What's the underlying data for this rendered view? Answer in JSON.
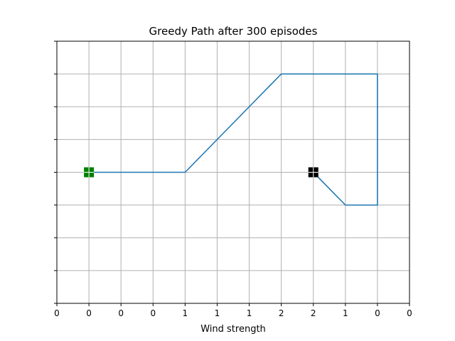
{
  "chart_data": {
    "type": "line",
    "title": "Greedy Path after 300 episodes",
    "xlabel": "Wind strength",
    "ylabel": "",
    "xlim": [
      0,
      11
    ],
    "ylim": [
      0,
      8
    ],
    "x_tick_positions": [
      0,
      1,
      2,
      3,
      4,
      5,
      6,
      7,
      8,
      9,
      10,
      11
    ],
    "x_tick_labels": [
      "0",
      "0",
      "0",
      "0",
      "1",
      "1",
      "1",
      "2",
      "2",
      "1",
      "0",
      "0"
    ],
    "y_tick_positions": [
      0,
      1,
      2,
      3,
      4,
      5,
      6,
      7,
      8
    ],
    "y_tick_labels": [
      "",
      "",
      "",
      "",
      "",
      "",
      "",
      "",
      ""
    ],
    "grid": true,
    "series": [
      {
        "x": [
          1,
          2,
          3,
          4,
          5,
          6,
          7,
          8,
          9,
          10,
          10,
          9,
          8
        ],
        "y": [
          4,
          4,
          4,
          4,
          5,
          6,
          7,
          7,
          7,
          7,
          3,
          3,
          4
        ],
        "color": "#1f77b4"
      }
    ],
    "markers": [
      {
        "role": "start",
        "x": 1,
        "y": 4,
        "shape": "square",
        "color": "#008000"
      },
      {
        "role": "goal",
        "x": 8,
        "y": 4,
        "shape": "square",
        "color": "#000000"
      }
    ]
  }
}
